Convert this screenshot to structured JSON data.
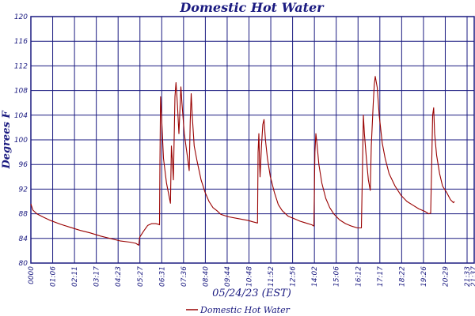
{
  "chart_data": {
    "type": "line",
    "title": "Domestic Hot Water",
    "xlabel": "05/24/23 (EST)",
    "ylabel": "Degrees F",
    "ylim": [
      80,
      120
    ],
    "yticks": [
      "80",
      "84",
      "88",
      "92",
      "96",
      "100",
      "104",
      "108",
      "112",
      "116",
      "120"
    ],
    "xticks": [
      "0000",
      "01:06",
      "02:11",
      "03:17",
      "04:23",
      "05:27",
      "06:31",
      "07:36",
      "08:40",
      "09:44",
      "10:48",
      "11:52",
      "12:56",
      "14:02",
      "15:06",
      "16:12",
      "17:17",
      "18:22",
      "19:26",
      "20:29",
      "21:33",
      "21:37"
    ],
    "grid": true,
    "legend_position": "bottom",
    "colors": {
      "series": "#990000",
      "grid": "#1a1a80",
      "text": "#1a1a80"
    },
    "series": [
      {
        "name": "Domestic Hot Water",
        "points": [
          [
            0.0,
            89.6
          ],
          [
            0.1,
            88.6
          ],
          [
            0.3,
            88.0
          ],
          [
            0.6,
            87.5
          ],
          [
            1.0,
            86.9
          ],
          [
            1.5,
            86.3
          ],
          [
            2.0,
            85.8
          ],
          [
            2.5,
            85.3
          ],
          [
            3.0,
            84.9
          ],
          [
            3.5,
            84.4
          ],
          [
            4.0,
            84.0
          ],
          [
            4.5,
            83.6
          ],
          [
            5.0,
            83.4
          ],
          [
            5.3,
            83.2
          ],
          [
            5.45,
            82.9
          ],
          [
            5.5,
            84.2
          ],
          [
            5.7,
            85.2
          ],
          [
            5.9,
            86.1
          ],
          [
            6.1,
            86.4
          ],
          [
            6.3,
            86.4
          ],
          [
            6.45,
            86.3
          ],
          [
            6.5,
            86.2
          ],
          [
            6.52,
            96.0
          ],
          [
            6.55,
            107.0
          ],
          [
            6.6,
            104.0
          ],
          [
            6.7,
            97.0
          ],
          [
            6.85,
            93.0
          ],
          [
            7.05,
            89.7
          ],
          [
            7.1,
            99.0
          ],
          [
            7.15,
            96.5
          ],
          [
            7.2,
            93.5
          ],
          [
            7.28,
            107.0
          ],
          [
            7.33,
            109.3
          ],
          [
            7.4,
            106.0
          ],
          [
            7.48,
            101.0
          ],
          [
            7.52,
            104.0
          ],
          [
            7.58,
            108.6
          ],
          [
            7.63,
            106.0
          ],
          [
            7.75,
            101.0
          ],
          [
            7.9,
            97.5
          ],
          [
            8.0,
            95.0
          ],
          [
            8.05,
            103.0
          ],
          [
            8.1,
            107.5
          ],
          [
            8.15,
            104.0
          ],
          [
            8.25,
            99.0
          ],
          [
            8.4,
            96.5
          ],
          [
            8.6,
            93.5
          ],
          [
            8.8,
            91.5
          ],
          [
            9.0,
            90.0
          ],
          [
            9.2,
            89.0
          ],
          [
            9.4,
            88.5
          ],
          [
            9.6,
            87.9
          ],
          [
            10.0,
            87.5
          ],
          [
            10.5,
            87.2
          ],
          [
            11.0,
            86.9
          ],
          [
            11.2,
            86.7
          ],
          [
            11.45,
            86.5
          ],
          [
            11.48,
            98.0
          ],
          [
            11.52,
            101.0
          ],
          [
            11.55,
            96.5
          ],
          [
            11.58,
            94.0
          ],
          [
            11.65,
            99.0
          ],
          [
            11.72,
            102.5
          ],
          [
            11.78,
            103.3
          ],
          [
            11.85,
            100.0
          ],
          [
            11.95,
            97.0
          ],
          [
            12.1,
            94.0
          ],
          [
            12.3,
            91.5
          ],
          [
            12.5,
            89.5
          ],
          [
            12.7,
            88.5
          ],
          [
            13.0,
            87.6
          ],
          [
            13.3,
            87.2
          ],
          [
            13.6,
            86.8
          ],
          [
            13.9,
            86.5
          ],
          [
            14.2,
            86.2
          ],
          [
            14.3,
            86.0
          ],
          [
            14.35,
            98.0
          ],
          [
            14.4,
            101.0
          ],
          [
            14.45,
            99.5
          ],
          [
            14.55,
            96.0
          ],
          [
            14.7,
            93.0
          ],
          [
            14.9,
            90.5
          ],
          [
            15.1,
            89.0
          ],
          [
            15.3,
            88.0
          ],
          [
            15.6,
            87.0
          ],
          [
            15.9,
            86.4
          ],
          [
            16.2,
            86.0
          ],
          [
            16.5,
            85.7
          ],
          [
            16.7,
            85.7
          ],
          [
            16.75,
            95.0
          ],
          [
            16.8,
            104.0
          ],
          [
            16.85,
            101.0
          ],
          [
            16.95,
            97.0
          ],
          [
            17.05,
            93.5
          ],
          [
            17.15,
            91.8
          ],
          [
            17.2,
            99.0
          ],
          [
            17.3,
            106.0
          ],
          [
            17.35,
            109.0
          ],
          [
            17.4,
            110.3
          ],
          [
            17.5,
            108.5
          ],
          [
            17.6,
            104.0
          ],
          [
            17.75,
            99.5
          ],
          [
            17.9,
            97.0
          ],
          [
            18.1,
            94.5
          ],
          [
            18.4,
            92.5
          ],
          [
            18.7,
            91.0
          ],
          [
            19.0,
            90.0
          ],
          [
            19.3,
            89.4
          ],
          [
            19.6,
            88.8
          ],
          [
            19.9,
            88.4
          ],
          [
            20.1,
            88.0
          ],
          [
            20.2,
            88.1
          ],
          [
            20.25,
            96.0
          ],
          [
            20.3,
            104.0
          ],
          [
            20.35,
            105.2
          ],
          [
            20.4,
            101.0
          ],
          [
            20.5,
            97.5
          ],
          [
            20.65,
            94.5
          ],
          [
            20.8,
            92.5
          ],
          [
            21.0,
            91.5
          ],
          [
            21.2,
            90.3
          ],
          [
            21.35,
            89.8
          ],
          [
            21.4,
            90.0
          ]
        ]
      }
    ]
  }
}
